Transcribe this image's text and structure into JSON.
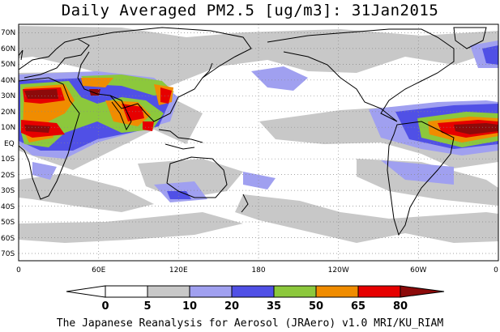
{
  "title": "Daily Averaged PM2.5 [ug/m3]: 31Jan2015",
  "credit": "The Japanese Reanalysis for Aerosol (JRAero) v1.0 MRI/KU_RIAM",
  "lat_labels": [
    "70N",
    "60N",
    "50N",
    "40N",
    "30N",
    "20N",
    "10N",
    "EQ",
    "10S",
    "20S",
    "30S",
    "40S",
    "50S",
    "60S",
    "70S"
  ],
  "lon_labels": [
    "0",
    "60E",
    "120E",
    "180",
    "120W",
    "60W",
    "0"
  ],
  "legend": {
    "levels": [
      "0",
      "5",
      "10",
      "20",
      "35",
      "50",
      "65",
      "80"
    ],
    "colors": [
      "#ffffff",
      "#c8c8c8",
      "#a0a0f0",
      "#5050e6",
      "#8cc83c",
      "#f08c00",
      "#e60000",
      "#8c0a0a"
    ]
  },
  "colors": {
    "land_outline": "#000000",
    "grid": "#888888"
  }
}
